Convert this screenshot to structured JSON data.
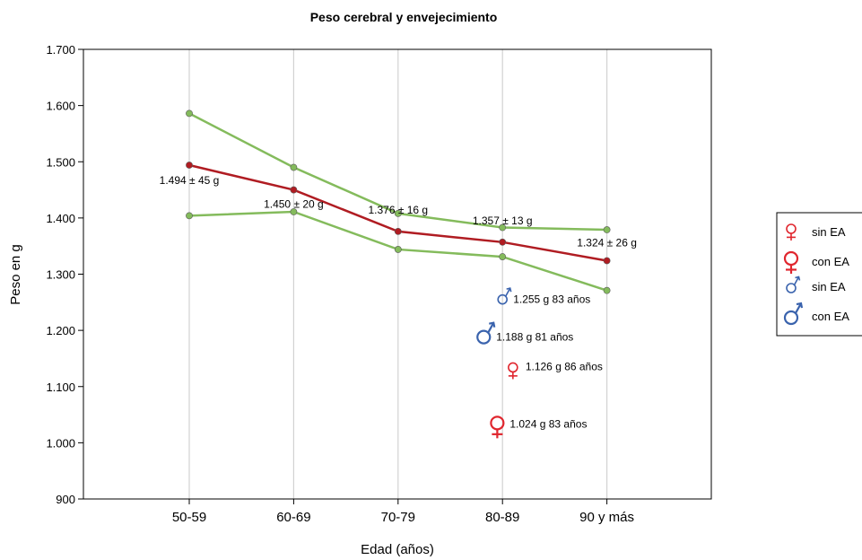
{
  "chart_data": {
    "type": "line",
    "title": "Peso cerebral  y envejecimiento",
    "xlabel": "Edad (años)",
    "ylabel": "Peso en g",
    "categories": [
      "50-59",
      "60-69",
      "70-79",
      "80-89",
      "90 y más"
    ],
    "ylim": [
      900,
      1700
    ],
    "yticks": [
      900,
      1000,
      1100,
      1200,
      1300,
      1400,
      1500,
      1600,
      1700
    ],
    "ytick_labels": [
      "900",
      "1.000",
      "1.100",
      "1.200",
      "1.300",
      "1.400",
      "1.500",
      "1.600",
      "1.700"
    ],
    "grid": "vertical",
    "colors": {
      "mean": "#b01c22",
      "band": "#84bb5c",
      "female": "#e0262e",
      "male": "#3a63ad",
      "grid": "#d2d2d2"
    },
    "series": [
      {
        "role": "upper",
        "values": [
          1586,
          1490,
          1408,
          1383,
          1379
        ]
      },
      {
        "role": "mean",
        "values": [
          1494,
          1450,
          1376,
          1357,
          1324
        ]
      },
      {
        "role": "lower",
        "values": [
          1404,
          1411,
          1344,
          1331,
          1271
        ]
      }
    ],
    "mean_labels": [
      "1.494 ± 45 g",
      "1.450 ± 20 g",
      "1.376 ± 16 g",
      "1.357 ± 13 g",
      "1.324 ± 26 g"
    ],
    "cases": [
      {
        "symbol": "male",
        "size": "small",
        "x": 3.0,
        "y": 1255,
        "label": "1.255 g  83 años"
      },
      {
        "symbol": "male",
        "size": "large",
        "x": 2.82,
        "y": 1188,
        "label": "1.188 g  81 años"
      },
      {
        "symbol": "female",
        "size": "small",
        "x": 3.1,
        "y": 1126,
        "label": "1.126 g  86 años"
      },
      {
        "symbol": "female",
        "size": "large",
        "x": 2.95,
        "y": 1024,
        "label": "1.024 g  83 años"
      }
    ],
    "legend": {
      "position": "right",
      "items": [
        {
          "symbol": "female",
          "size": "small",
          "label": "sin EA"
        },
        {
          "symbol": "female",
          "size": "large",
          "label": "con EA"
        },
        {
          "symbol": "male",
          "size": "small",
          "label": "sin EA"
        },
        {
          "symbol": "male",
          "size": "large",
          "label": "con EA"
        }
      ]
    }
  }
}
